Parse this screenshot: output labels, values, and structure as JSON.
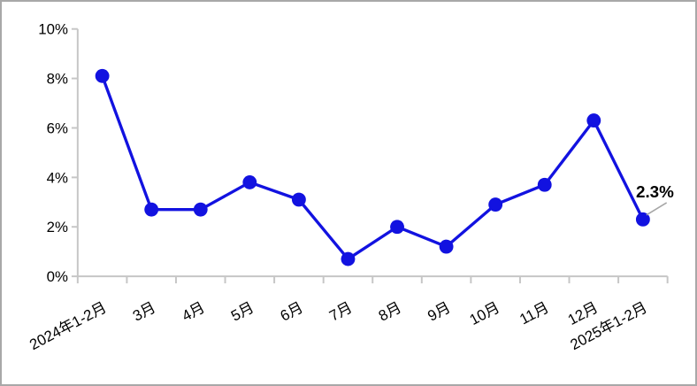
{
  "chart_data": {
    "type": "line",
    "categories": [
      "2024年1-2月",
      "3月",
      "4月",
      "5月",
      "6月",
      "7月",
      "8月",
      "9月",
      "10月",
      "11月",
      "12月",
      "2025年1-2月"
    ],
    "values": [
      8.1,
      2.7,
      2.7,
      3.8,
      3.1,
      0.7,
      2.0,
      1.2,
      2.9,
      3.7,
      6.3,
      2.3
    ],
    "title": "",
    "xlabel": "",
    "ylabel": "",
    "ylim": [
      0,
      10
    ],
    "ytick_step": 2,
    "ytick_labels": [
      "0%",
      "2%",
      "4%",
      "6%",
      "8%",
      "10%"
    ],
    "grid": false,
    "legend": null,
    "annotation": {
      "label": "2.3%",
      "applies_to_category": "2025年1-2月",
      "value": 2.3
    },
    "colors": {
      "line": "#1212e0",
      "marker": "#1212e0",
      "axis": "#c6c6c6",
      "tick": "#c6c6c6",
      "leader_line": "#a6a6a6",
      "text": "#000000",
      "background": "#ffffff",
      "frame_border": "#a8a8a8"
    }
  }
}
